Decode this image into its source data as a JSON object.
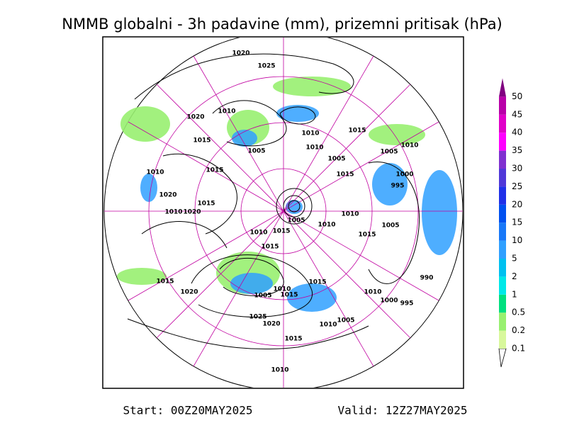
{
  "title": "NMMB globalni - 3h padavine (mm), prizemni pritisak (hPa)",
  "legend": {
    "levels": [
      "0.1",
      "0.2",
      "0.5",
      "1",
      "2",
      "5",
      "10",
      "15",
      "20",
      "25",
      "30",
      "35",
      "40",
      "45",
      "50"
    ],
    "colors": [
      "#d8f89c",
      "#98f070",
      "#00e080",
      "#00e8e8",
      "#00c0f0",
      "#30a0ff",
      "#1878f8",
      "#0050f0",
      "#2030e8",
      "#5038d8",
      "#8030d0",
      "#ff00ff",
      "#e000c8",
      "#b800a8",
      "#800080"
    ]
  },
  "isobars": [
    1020,
    1025,
    1020,
    1010,
    1015,
    1010,
    1015,
    1010,
    1005,
    1005,
    1010,
    1005,
    1015,
    1010,
    1015,
    1000,
    995,
    1020,
    1015,
    1020,
    1010,
    1010,
    1005,
    1010,
    1005,
    1010,
    1015,
    1015,
    1015,
    990,
    1015,
    1015,
    1020,
    1010,
    1005,
    1015,
    1010,
    1000,
    995,
    1025,
    1005,
    1020,
    1010,
    1015,
    1010
  ],
  "footer": {
    "start": "Start: 00Z20MAY2025",
    "valid": "Valid: 12Z27MAY2025"
  }
}
